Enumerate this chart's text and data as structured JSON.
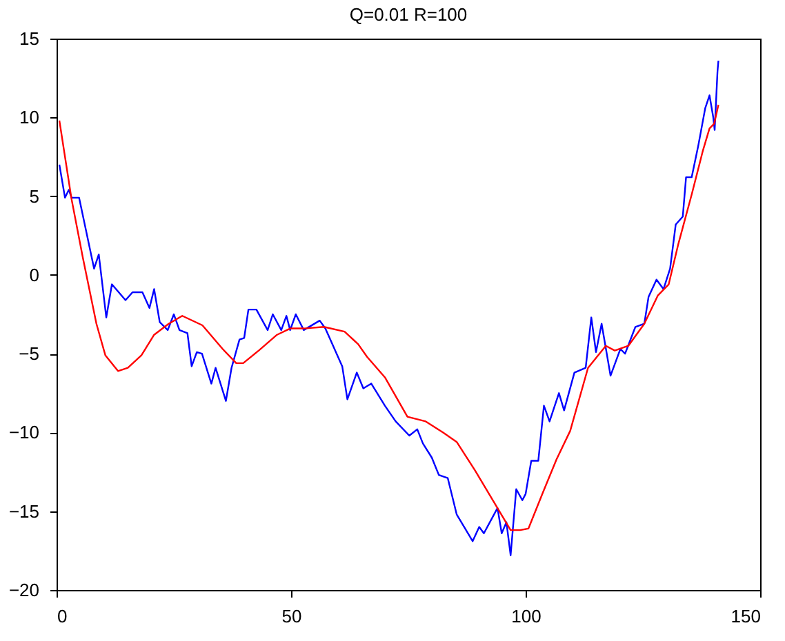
{
  "chart_data": {
    "type": "line",
    "title": "Q=0.01 R=100",
    "xlim": [
      0,
      150
    ],
    "xticks": [
      0,
      50,
      100,
      150
    ],
    "ylim": [
      -20,
      15
    ],
    "yticks": [
      -20,
      -15,
      -10,
      -5,
      0,
      5,
      10,
      15
    ],
    "grid": false,
    "legend": false,
    "series": [
      {
        "color": "#0000ff",
        "x": [
          0.6,
          1.8,
          2.6,
          3.2,
          4.8,
          8.0,
          9.0,
          10.6,
          11.8,
          14.7,
          16.2,
          18.3,
          19.8,
          20.8,
          22.0,
          23.7,
          25.0,
          26.2,
          27.9,
          28.8,
          29.9,
          31.0,
          33.0,
          33.9,
          36.1,
          37.3,
          39.0,
          40.0,
          40.9,
          42.6,
          45.0,
          46.1,
          47.9,
          49.0,
          49.8,
          51.0,
          52.7,
          56.1,
          57.3,
          58.5,
          60.9,
          62.0,
          64.0,
          65.4,
          67.1,
          70.0,
          72.3,
          75.2,
          76.9,
          78.1,
          80.0,
          81.5,
          83.4,
          85.3,
          88.7,
          90.1,
          91.1,
          94.0,
          94.9,
          95.9,
          96.8,
          98.0,
          99.3,
          100.0,
          101.2,
          102.7,
          103.9,
          105.1,
          107.1,
          108.2,
          110.4,
          112.8,
          114.0,
          115.0,
          116.2,
          118.1,
          120.2,
          121.2,
          123.4,
          125.3,
          126.2,
          127.9,
          129.4,
          130.8,
          132.0,
          133.5,
          134.2,
          135.4,
          136.8,
          138.3,
          139.2,
          140.0,
          140.3,
          140.9,
          141.1
        ],
        "values": [
          7.0,
          4.9,
          5.4,
          4.9,
          4.9,
          0.4,
          1.3,
          -2.7,
          -0.6,
          -1.6,
          -1.1,
          -1.1,
          -2.1,
          -0.9,
          -3.0,
          -3.5,
          -2.5,
          -3.5,
          -3.7,
          -5.8,
          -4.9,
          -5.0,
          -6.9,
          -5.9,
          -8.0,
          -5.9,
          -4.1,
          -4.0,
          -2.2,
          -2.2,
          -3.5,
          -2.5,
          -3.5,
          -2.6,
          -3.5,
          -2.5,
          -3.5,
          -2.9,
          -3.4,
          -4.2,
          -5.8,
          -7.9,
          -6.2,
          -7.2,
          -6.9,
          -8.3,
          -9.3,
          -10.2,
          -9.8,
          -10.7,
          -11.6,
          -12.7,
          -12.9,
          -15.2,
          -16.9,
          -16.0,
          -16.4,
          -14.8,
          -16.4,
          -15.7,
          -17.8,
          -13.6,
          -14.3,
          -13.9,
          -11.8,
          -11.8,
          -8.3,
          -9.3,
          -7.5,
          -8.6,
          -6.2,
          -5.9,
          -2.7,
          -4.9,
          -3.1,
          -6.4,
          -4.7,
          -5.0,
          -3.3,
          -3.1,
          -1.4,
          -0.3,
          -0.9,
          0.4,
          3.2,
          3.7,
          6.2,
          6.2,
          8.2,
          10.6,
          11.4,
          10.0,
          9.2,
          12.9,
          13.6
        ]
      },
      {
        "color": "#ff0000",
        "x": [
          0.6,
          3.2,
          5.6,
          8.5,
          10.4,
          13.1,
          15.2,
          18.1,
          20.8,
          23.9,
          26.8,
          31.1,
          35.4,
          38.3,
          39.8,
          43.1,
          47.0,
          49.8,
          52.7,
          57.0,
          61.4,
          64.3,
          66.2,
          70.0,
          74.8,
          78.7,
          82.4,
          85.3,
          89.2,
          94.0,
          96.8,
          98.8,
          100.6,
          103.7,
          106.6,
          109.5,
          113.3,
          117.1,
          119.0,
          121.9,
          125.3,
          128.2,
          130.5,
          132.5,
          135.4,
          137.8,
          139.2,
          140.2,
          141.1
        ],
        "values": [
          9.8,
          4.8,
          1.1,
          -3.1,
          -5.1,
          -6.1,
          -5.9,
          -5.1,
          -3.8,
          -3.1,
          -2.6,
          -3.2,
          -4.7,
          -5.6,
          -5.6,
          -4.8,
          -3.8,
          -3.4,
          -3.4,
          -3.3,
          -3.6,
          -4.4,
          -5.2,
          -6.5,
          -9.0,
          -9.3,
          -10.0,
          -10.6,
          -12.4,
          -14.8,
          -16.2,
          -16.2,
          -16.1,
          -13.8,
          -11.7,
          -9.9,
          -5.9,
          -4.5,
          -4.8,
          -4.5,
          -3.1,
          -1.3,
          -0.6,
          1.9,
          5.1,
          7.9,
          9.3,
          9.6,
          10.8
        ]
      }
    ]
  }
}
